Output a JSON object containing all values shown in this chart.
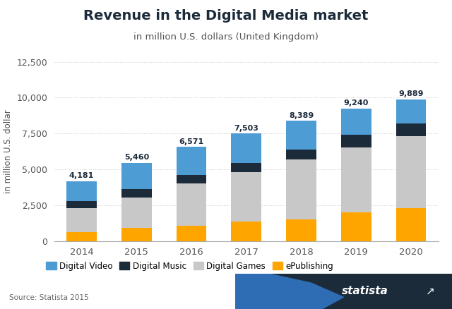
{
  "title": "Revenue in the Digital Media market",
  "subtitle": "in million U.S. dollars (United Kingdom)",
  "ylabel": "in million U.S. dollar",
  "source": "Source: Statista 2015",
  "years": [
    2014,
    2015,
    2016,
    2017,
    2018,
    2019,
    2020
  ],
  "totals": [
    4181,
    5460,
    6571,
    7503,
    8389,
    9240,
    9889
  ],
  "segments": {
    "ePublishing": [
      600,
      900,
      1050,
      1350,
      1500,
      2000,
      2300
    ],
    "Digital Games": [
      1700,
      2150,
      2950,
      3450,
      4200,
      4550,
      5000
    ],
    "Digital Music": [
      500,
      550,
      600,
      650,
      700,
      850,
      900
    ],
    "Digital Video": [
      1381,
      1860,
      1971,
      2053,
      1989,
      1840,
      1689
    ]
  },
  "colors": {
    "ePublishing": "#FFA500",
    "Digital Games": "#C8C8C8",
    "Digital Music": "#1C2B3A",
    "Digital Video": "#4E9CD4"
  },
  "ylim": [
    0,
    12500
  ],
  "yticks": [
    0,
    2500,
    5000,
    7500,
    10000,
    12500
  ],
  "background_color": "#FFFFFF",
  "plot_bg_color": "#FFFFFF",
  "grid_color": "#CCCCCC",
  "title_color": "#1C2B3A",
  "bar_width": 0.55
}
